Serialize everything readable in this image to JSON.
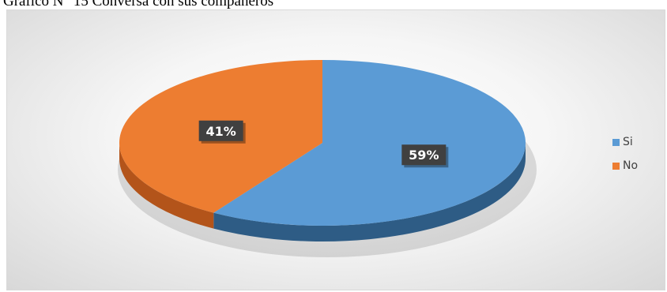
{
  "caption": "Gráfico N° 15 Conversa con sus compañeros",
  "colors": {
    "si": "#5b9bd5",
    "no": "#ed7d31",
    "si_side": "#2e5c85",
    "no_side": "#b3541a"
  },
  "chart_data": {
    "type": "pie",
    "title": "",
    "categories": [
      "Si",
      "No"
    ],
    "values": [
      59,
      41
    ],
    "data_labels": [
      "59%",
      "41%"
    ],
    "legend": {
      "placement": "right",
      "entries": [
        "Si",
        "No"
      ]
    },
    "style": "3d"
  }
}
